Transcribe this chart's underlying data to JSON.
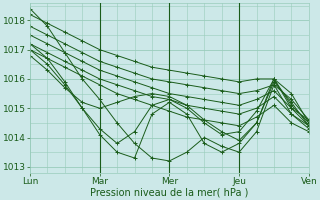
{
  "xlabel": "Pression niveau de la mer( hPa )",
  "background_color": "#cce8e8",
  "grid_color": "#99ccbb",
  "line_color": "#1a5c1a",
  "ylim": [
    1012.8,
    1018.6
  ],
  "xlim": [
    0,
    96
  ],
  "xtick_positions": [
    0,
    24,
    48,
    72,
    96
  ],
  "xtick_labels": [
    "Lun",
    "Mar",
    "Mer",
    "Jeu",
    "Ven"
  ],
  "ytick_positions": [
    1013,
    1014,
    1015,
    1016,
    1017,
    1018
  ],
  "ytick_labels": [
    "1013",
    "1014",
    "1015",
    "1016",
    "1017",
    "1018"
  ],
  "vline_positions": [
    24,
    48,
    72
  ],
  "lines": [
    {
      "x": [
        0,
        6,
        12,
        18,
        24,
        30,
        36,
        42,
        48,
        54,
        60,
        66,
        72,
        78,
        84,
        90,
        96
      ],
      "y": [
        1018.2,
        1017.9,
        1017.6,
        1017.3,
        1017.0,
        1016.8,
        1016.6,
        1016.4,
        1016.3,
        1016.2,
        1016.1,
        1016.0,
        1015.9,
        1016.0,
        1016.0,
        1015.5,
        1014.5
      ]
    },
    {
      "x": [
        0,
        6,
        12,
        18,
        24,
        30,
        36,
        42,
        48,
        54,
        60,
        66,
        72,
        78,
        84,
        90,
        96
      ],
      "y": [
        1017.8,
        1017.5,
        1017.2,
        1016.9,
        1016.6,
        1016.4,
        1016.2,
        1016.0,
        1015.9,
        1015.8,
        1015.7,
        1015.6,
        1015.5,
        1015.6,
        1015.8,
        1015.3,
        1014.6
      ]
    },
    {
      "x": [
        0,
        6,
        12,
        18,
        24,
        30,
        36,
        42,
        48,
        54,
        60,
        66,
        72,
        78,
        84,
        90,
        96
      ],
      "y": [
        1017.5,
        1017.2,
        1016.9,
        1016.6,
        1016.3,
        1016.1,
        1015.9,
        1015.7,
        1015.5,
        1015.4,
        1015.3,
        1015.2,
        1015.1,
        1015.3,
        1015.6,
        1015.0,
        1014.4
      ]
    },
    {
      "x": [
        0,
        6,
        12,
        18,
        24,
        30,
        36,
        42,
        48,
        54,
        60,
        66,
        72,
        78,
        84,
        90,
        96
      ],
      "y": [
        1017.2,
        1016.9,
        1016.6,
        1016.3,
        1016.0,
        1015.8,
        1015.6,
        1015.4,
        1015.3,
        1015.1,
        1015.0,
        1014.9,
        1014.8,
        1015.0,
        1015.4,
        1014.8,
        1014.3
      ]
    },
    {
      "x": [
        0,
        6,
        12,
        18,
        24,
        30,
        36,
        42,
        48,
        54,
        60,
        66,
        72,
        78,
        84,
        90,
        96
      ],
      "y": [
        1017.0,
        1016.7,
        1016.4,
        1016.1,
        1015.8,
        1015.5,
        1015.3,
        1015.1,
        1014.9,
        1014.7,
        1014.6,
        1014.5,
        1014.4,
        1014.7,
        1015.1,
        1014.5,
        1014.2
      ]
    },
    {
      "x": [
        0,
        6,
        12,
        18,
        24,
        30,
        36,
        42,
        48,
        54,
        60,
        66,
        72,
        78,
        84,
        90,
        96
      ],
      "y": [
        1016.8,
        1016.3,
        1015.7,
        1015.2,
        1015.0,
        1015.2,
        1015.4,
        1015.5,
        1015.4,
        1015.1,
        1014.6,
        1014.2,
        1013.9,
        1014.5,
        1015.9,
        1015.2,
        1014.4
      ]
    },
    {
      "x": [
        0,
        6,
        12,
        18,
        24,
        30,
        36,
        42,
        48,
        54,
        60,
        66,
        72,
        78,
        84,
        90,
        96
      ],
      "y": [
        1017.0,
        1016.5,
        1015.8,
        1015.0,
        1014.3,
        1013.8,
        1014.2,
        1015.1,
        1015.3,
        1015.0,
        1014.5,
        1014.1,
        1014.2,
        1014.9,
        1016.0,
        1015.1,
        1014.5
      ]
    },
    {
      "x": [
        0,
        6,
        12,
        18,
        24,
        30,
        36,
        42,
        48,
        54,
        60,
        66,
        72,
        78,
        84,
        90,
        96
      ],
      "y": [
        1017.2,
        1016.7,
        1015.9,
        1015.0,
        1014.1,
        1013.5,
        1013.3,
        1014.8,
        1015.2,
        1014.8,
        1013.8,
        1013.5,
        1013.8,
        1014.5,
        1016.0,
        1015.0,
        1014.6
      ]
    },
    {
      "x": [
        0,
        6,
        12,
        18,
        24,
        30,
        36,
        42,
        48,
        54,
        60,
        66,
        72,
        78,
        84,
        90,
        96
      ],
      "y": [
        1018.4,
        1017.8,
        1016.9,
        1016.0,
        1015.3,
        1014.5,
        1013.8,
        1013.3,
        1013.2,
        1013.5,
        1014.0,
        1013.7,
        1013.5,
        1014.2,
        1015.8,
        1014.8,
        1014.4
      ]
    }
  ],
  "marker": "+",
  "markersize": 3,
  "linewidth": 0.7
}
